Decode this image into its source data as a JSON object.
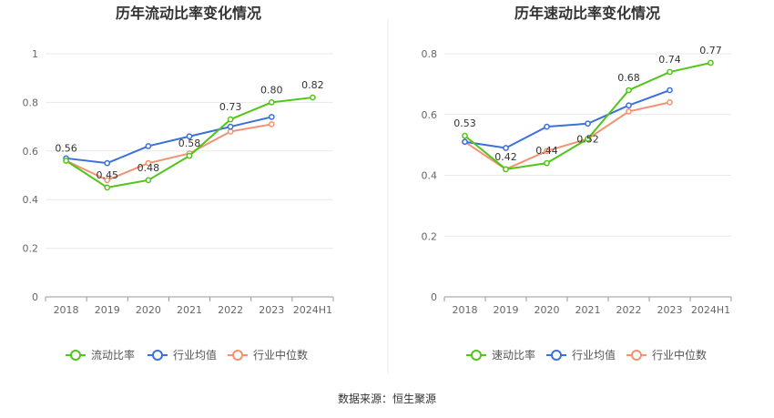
{
  "source": "数据来源：恒生聚源",
  "colors": {
    "main": "#52c41a",
    "avg": "#3a70d8",
    "median": "#f39270",
    "grid": "#e8e8e8",
    "axis": "#999999"
  },
  "chart_data": [
    {
      "type": "line",
      "title": "历年流动比率变化情况",
      "categories": [
        "2018",
        "2019",
        "2020",
        "2021",
        "2022",
        "2023",
        "2024H1"
      ],
      "ylim": [
        0,
        1
      ],
      "yticks": [
        "0",
        "0.2",
        "0.4",
        "0.6",
        "0.8",
        "1"
      ],
      "grid": true,
      "legend_position": "bottom",
      "series": [
        {
          "name": "流动比率",
          "values": [
            0.56,
            0.45,
            0.48,
            0.58,
            0.73,
            0.8,
            0.82
          ],
          "labels": [
            "0.56",
            "0.45",
            "0.48",
            "0.58",
            "0.73",
            "0.80",
            "0.82"
          ]
        },
        {
          "name": "行业均值",
          "values": [
            0.57,
            0.55,
            0.62,
            0.66,
            0.7,
            0.74,
            null
          ]
        },
        {
          "name": "行业中位数",
          "values": [
            0.56,
            0.48,
            0.55,
            0.59,
            0.68,
            0.71,
            null
          ]
        }
      ]
    },
    {
      "type": "line",
      "title": "历年速动比率变化情况",
      "categories": [
        "2018",
        "2019",
        "2020",
        "2021",
        "2022",
        "2023",
        "2024H1"
      ],
      "ylim": [
        0,
        0.8
      ],
      "yticks": [
        "0",
        "0.2",
        "0.4",
        "0.6",
        "0.8"
      ],
      "grid": true,
      "legend_position": "bottom",
      "series": [
        {
          "name": "速动比率",
          "values": [
            0.53,
            0.42,
            0.44,
            0.52,
            0.68,
            0.74,
            0.77
          ],
          "labels": [
            "0.53",
            "0.42",
            "0.44",
            "0.52",
            "0.68",
            "0.74",
            "0.77"
          ]
        },
        {
          "name": "行业均值",
          "values": [
            0.51,
            0.49,
            0.56,
            0.57,
            0.63,
            0.68,
            null
          ]
        },
        {
          "name": "行业中位数",
          "values": [
            0.51,
            0.42,
            0.48,
            0.52,
            0.61,
            0.64,
            null
          ]
        }
      ]
    }
  ]
}
